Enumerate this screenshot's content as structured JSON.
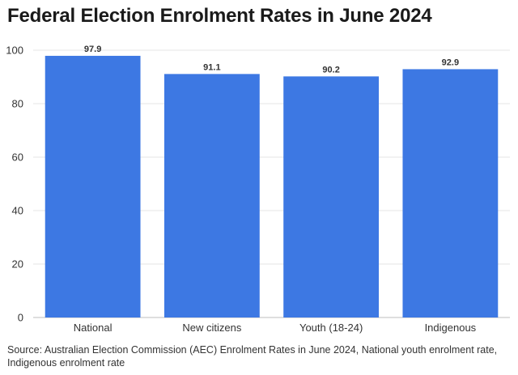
{
  "chart_data": {
    "type": "bar",
    "title": "Federal Election Enrolment Rates in June 2024",
    "categories": [
      "National",
      "New citizens",
      "Youth (18-24)",
      "Indigenous"
    ],
    "values": [
      97.9,
      91.1,
      90.2,
      92.9
    ],
    "value_labels": [
      "97.9",
      "91.1",
      "90.2",
      "92.9"
    ],
    "ylim": [
      0,
      100
    ],
    "yticks": [
      0,
      20,
      40,
      60,
      80,
      100
    ],
    "xlabel": "",
    "ylabel": "",
    "grid": true,
    "bar_color": "#3d78e3",
    "source": "Source: Australian Election Commission (AEC) Enrolment Rates in June 2024, National youth enrolment rate, Indigenous enrolment rate"
  }
}
